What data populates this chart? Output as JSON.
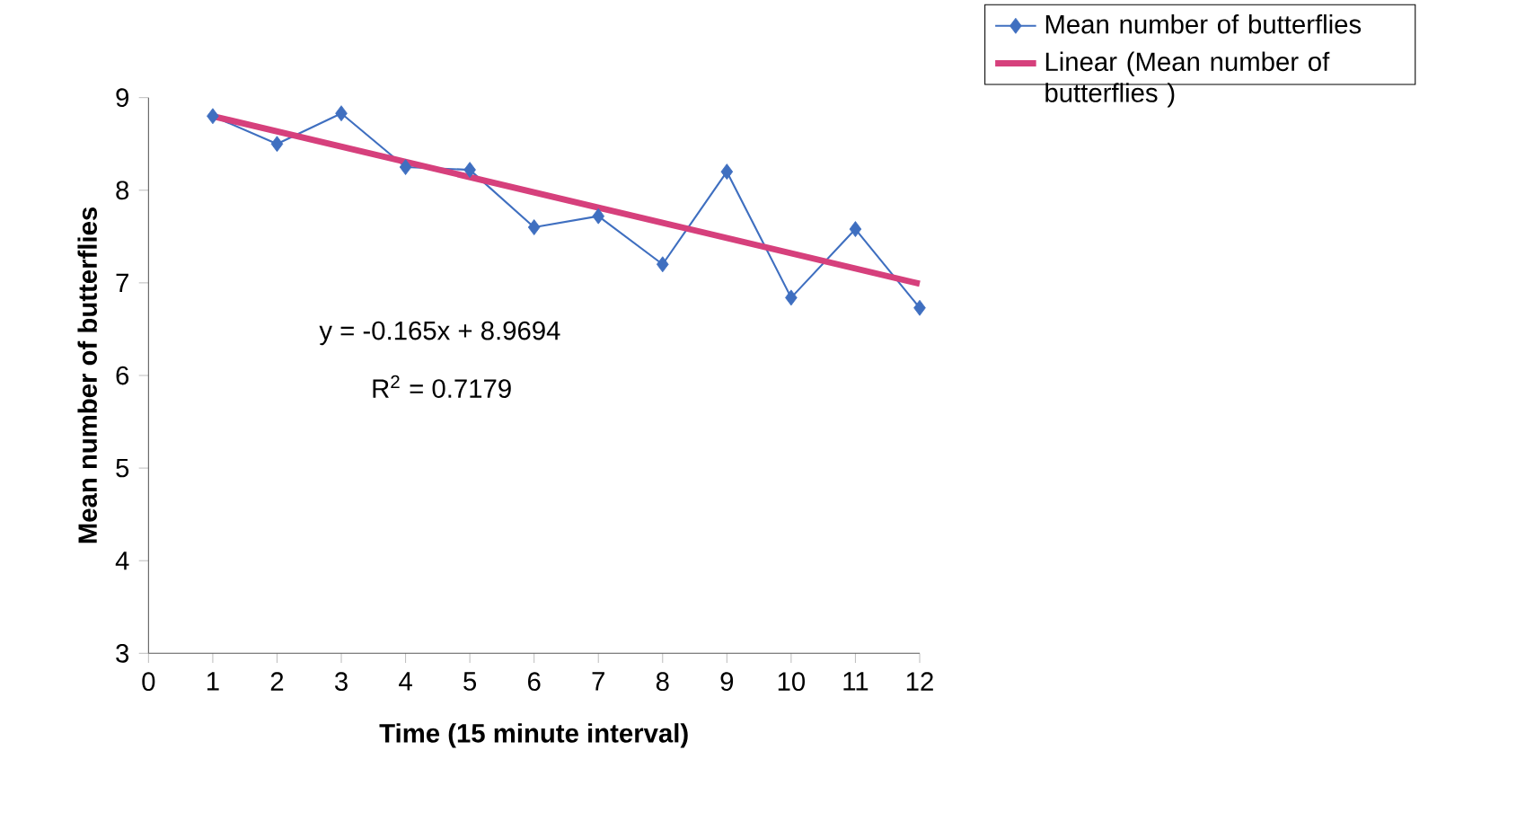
{
  "chart_data": {
    "type": "line",
    "xlabel": "Time (15 minute interval)",
    "ylabel": "Mean number of butterflies",
    "x": [
      1,
      2,
      3,
      4,
      5,
      6,
      7,
      8,
      9,
      10,
      11,
      12
    ],
    "series": [
      {
        "name": "Mean number of butterflies",
        "color": "#3f6fc0",
        "marker": "diamond",
        "values": [
          8.8,
          8.5,
          8.83,
          8.25,
          8.22,
          7.6,
          7.72,
          7.2,
          8.2,
          6.84,
          7.58,
          6.73
        ]
      },
      {
        "name": "Linear (Mean number of butterflies )",
        "type": "line",
        "color": "#d6407c",
        "marker": "none",
        "x": [
          1,
          12
        ],
        "values": [
          8.8,
          6.99
        ]
      }
    ],
    "annotations": [
      "y = -0.165x + 8.9694",
      "R$^{2}$ = 0.7179"
    ],
    "xlim": [
      0,
      12
    ],
    "xticks": [
      0,
      1,
      2,
      3,
      4,
      5,
      6,
      7,
      8,
      9,
      10,
      11,
      12
    ],
    "ylim": [
      3,
      9
    ],
    "yticks": [
      3,
      4,
      5,
      6,
      7,
      8,
      9
    ],
    "grid": false,
    "legend": "top right"
  }
}
